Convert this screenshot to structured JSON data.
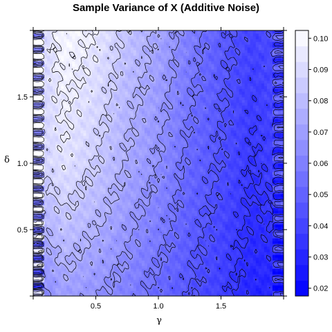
{
  "chart_data": {
    "type": "heatmap",
    "title": "Sample Variance of X (Additive Noise)",
    "xlabel": "γ",
    "ylabel": "δ",
    "xlim": [
      0.0,
      2.0
    ],
    "ylim": [
      0.0,
      2.0
    ],
    "x_ticks": [
      "0.5",
      "1.0",
      "1.5"
    ],
    "y_ticks": [
      "0.5",
      "1.0",
      "1.5"
    ],
    "colorbar": {
      "range": [
        0.0175,
        0.1025
      ],
      "ticks": [
        "0.02",
        "0.03",
        "0.04",
        "0.05",
        "0.06",
        "0.07",
        "0.08",
        "0.09",
        "0.10"
      ],
      "levels": [
        0.0175,
        0.0225,
        0.0275,
        0.0325,
        0.0375,
        0.0425,
        0.0475,
        0.0525,
        0.0575,
        0.0625,
        0.0675,
        0.0725,
        0.0775,
        0.0825,
        0.0875,
        0.0925,
        0.0975,
        0.1025
      ],
      "low_color": "#0000ff",
      "high_color": "#ffffff"
    },
    "gamma_values": [
      0.0,
      0.25,
      0.5,
      0.75,
      1.0,
      1.25,
      1.5,
      1.75,
      2.0
    ],
    "variance_at_delta_mid": [
      0.085,
      0.093,
      0.085,
      0.074,
      0.065,
      0.052,
      0.044,
      0.035,
      0.04
    ],
    "variance_at_delta_low": [
      0.06,
      0.07,
      0.066,
      0.06,
      0.052,
      0.045,
      0.038,
      0.03,
      0.03
    ],
    "variance_at_delta_high": [
      0.085,
      0.1,
      0.095,
      0.083,
      0.073,
      0.06,
      0.048,
      0.04,
      0.045
    ],
    "grid": false,
    "contours": true,
    "legend": "right colorbar"
  }
}
